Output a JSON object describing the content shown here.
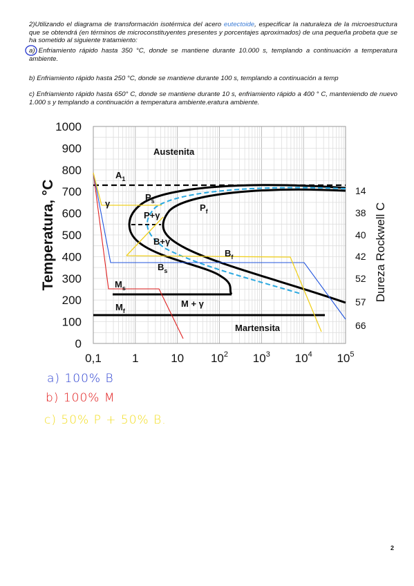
{
  "question": {
    "intro": [
      "2)Utilizando el diagrama de transformación isotérmica del acero ",
      "eutectoide",
      ", especificar la naturaleza de la microestructura que se obtendrá (en términos de microconstituyentes presentes y porcentajes aproximados) de una pequeña probeta que se ha sometido al siguiente tratamiento:"
    ],
    "items": [
      "a) Enfriamiento rápido hasta 350 °C, donde se mantiene durante 10.000 s, templando a continuación a temperatura ambiente.",
      "b) Enfriamiento rápido hasta 250 °C, donde se mantiene durante 100 s, templando a continuación a temp",
      "c) Enfriamiento rápido hasta 650° C, donde se mantiene durante 10 s, enfriamiento rápido a 400 ° C, manteniendo de nuevo 1.000 s y templando a continuación a temperatura ambiente.eratura ambiente."
    ]
  },
  "figure": {
    "y_axis_title": "Temperatura, °C",
    "y2_axis_title": "Dureza Rockwell C",
    "yticks": [
      "1000",
      "900",
      "800",
      "700",
      "600",
      "500",
      "400",
      "300",
      "200",
      "100",
      "0"
    ],
    "xticks": [
      {
        "base": "0,1",
        "exp": ""
      },
      {
        "base": "1",
        "exp": ""
      },
      {
        "base": "10",
        "exp": ""
      },
      {
        "base": "10",
        "exp": "2"
      },
      {
        "base": "10",
        "exp": "3"
      },
      {
        "base": "10",
        "exp": "4"
      },
      {
        "base": "10",
        "exp": "5"
      }
    ],
    "hardness": [
      "14",
      "38",
      "40",
      "42",
      "52",
      "57",
      "66"
    ],
    "labels": [
      {
        "main": "Austenita",
        "sub": ""
      },
      {
        "main": "A",
        "sub": "1"
      },
      {
        "main": "γ",
        "sub": ""
      },
      {
        "main": "P",
        "sub": "s"
      },
      {
        "main": "P+γ",
        "sub": ""
      },
      {
        "main": "P",
        "sub": "f"
      },
      {
        "main": "B+γ",
        "sub": ""
      },
      {
        "main": "B",
        "sub": "f"
      },
      {
        "main": "B",
        "sub": "s"
      },
      {
        "main": "M",
        "sub": "s"
      },
      {
        "main": "M",
        "sub": "f"
      },
      {
        "main": "M + γ",
        "sub": ""
      },
      {
        "main": "Martensita",
        "sub": ""
      }
    ]
  },
  "answers": [
    "a) 100% B",
    "b) 100% M",
    "c) 50% P + 50% B."
  ],
  "page_number": "2"
}
